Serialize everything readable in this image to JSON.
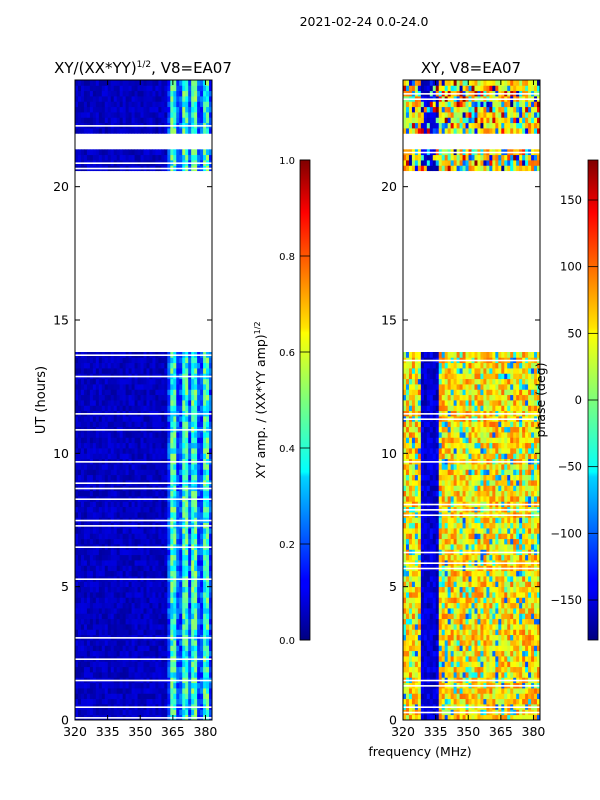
{
  "figure": {
    "suptitle": "2021-02-24 0.0-24.0",
    "shared_xlabel": "frequency (MHz)"
  },
  "chart_data": [
    {
      "type": "heatmap",
      "title": "XY/(XX*YY)^1/2, V8=EA07",
      "title_base": "XY/(XX*YY)",
      "title_exp": "1/2",
      "title_suffix": ", V8=EA07",
      "xlabel": "frequency (MHz)",
      "ylabel": "UT (hours)",
      "xlim": [
        320,
        383
      ],
      "ylim": [
        0,
        24
      ],
      "xticks": [
        320,
        335,
        350,
        365,
        380
      ],
      "yticks": [
        0,
        5,
        10,
        15,
        20
      ],
      "colorbar": {
        "label_base": "XY amp. / (XX*YY amp)",
        "label_exp": "1/2",
        "range": [
          0.0,
          1.0
        ],
        "ticks": [
          "0.0",
          "0.2",
          "0.4",
          "0.6",
          "0.8",
          "1.0"
        ],
        "tick_values": [
          0.0,
          0.2,
          0.4,
          0.6,
          0.8,
          1.0
        ]
      },
      "data_gaps_hours": [
        [
          13.8,
          20.5
        ],
        [
          21.5,
          21.9
        ]
      ],
      "description": "low amplitude (~0.05) below 360 MHz; higher amplitude (0.2-0.8) in channels 360-383 MHz"
    },
    {
      "type": "heatmap",
      "title": "XY, V8=EA07",
      "xlabel": "frequency (MHz)",
      "ylabel": "",
      "xlim": [
        320,
        383
      ],
      "ylim": [
        0,
        24
      ],
      "xticks": [
        320,
        335,
        350,
        365,
        380
      ],
      "yticks": [
        0,
        5,
        10,
        15,
        20
      ],
      "colorbar": {
        "label": "phase (deg)",
        "range": [
          -180,
          180
        ],
        "ticks": [
          "150",
          "100",
          "50",
          "0",
          "−50",
          "−100",
          "−150"
        ],
        "tick_values": [
          150,
          100,
          50,
          0,
          -50,
          -100,
          -150
        ]
      },
      "data_gaps_hours": [
        [
          13.8,
          20.5
        ],
        [
          21.5,
          21.9
        ]
      ],
      "description": "mostly phase 0-100 deg (green/yellow), with ~-150 deg band near 328-335 MHz"
    }
  ]
}
